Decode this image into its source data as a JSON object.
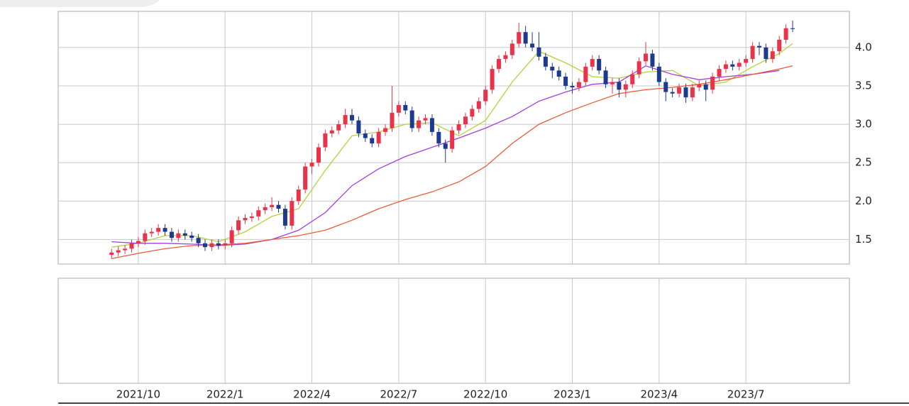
{
  "chart_data": {
    "type": "candlestick",
    "x": [
      8,
      9,
      10,
      11,
      12,
      13,
      14,
      15,
      16,
      17,
      18,
      19,
      20,
      21,
      22,
      23,
      24,
      25,
      26,
      27,
      28,
      29,
      30,
      31,
      32,
      33,
      34,
      35,
      36,
      37,
      38,
      39,
      40,
      41,
      42,
      43,
      44,
      45,
      46,
      47,
      48,
      49,
      50,
      51,
      52,
      53,
      54,
      55,
      56,
      57,
      58,
      59,
      60,
      61,
      62,
      63,
      64,
      65,
      66,
      67,
      68,
      69,
      70,
      71,
      72,
      73,
      74,
      75,
      76,
      77,
      78,
      79,
      80,
      81,
      82,
      83,
      84,
      85,
      86,
      87,
      88,
      89,
      90,
      91,
      92,
      93,
      94,
      95,
      96,
      97,
      98,
      99,
      100,
      101,
      102,
      103,
      104,
      105,
      106,
      107,
      108,
      109,
      110
    ],
    "open": [
      1.3,
      1.33,
      1.36,
      1.38,
      1.45,
      1.48,
      1.58,
      1.6,
      1.65,
      1.6,
      1.52,
      1.58,
      1.55,
      1.52,
      1.45,
      1.4,
      1.45,
      1.42,
      1.45,
      1.62,
      1.75,
      1.78,
      1.8,
      1.88,
      1.92,
      1.95,
      1.9,
      1.68,
      2.0,
      2.15,
      2.45,
      2.5,
      2.7,
      2.88,
      2.92,
      3.0,
      3.12,
      3.05,
      2.88,
      2.82,
      2.75,
      2.9,
      2.95,
      3.15,
      3.25,
      3.18,
      2.95,
      3.05,
      3.08,
      2.9,
      2.75,
      2.68,
      2.92,
      3.0,
      3.1,
      3.2,
      3.3,
      3.45,
      3.72,
      3.85,
      3.9,
      4.05,
      4.2,
      4.05,
      4.0,
      3.88,
      3.75,
      3.7,
      3.62,
      3.5,
      3.48,
      3.55,
      3.75,
      3.85,
      3.7,
      3.52,
      3.55,
      3.45,
      3.52,
      3.65,
      3.82,
      3.92,
      3.75,
      3.55,
      3.42,
      3.4,
      3.48,
      3.35,
      3.48,
      3.52,
      3.45,
      3.62,
      3.72,
      3.78,
      3.75,
      3.8,
      3.85,
      4.02,
      4.0,
      3.85,
      3.95,
      4.1,
      4.25
    ],
    "high": [
      1.38,
      1.41,
      1.43,
      1.5,
      1.53,
      1.63,
      1.65,
      1.7,
      1.7,
      1.65,
      1.63,
      1.63,
      1.6,
      1.57,
      1.5,
      1.5,
      1.5,
      1.5,
      1.67,
      1.8,
      1.83,
      1.85,
      1.93,
      1.97,
      2.05,
      2.0,
      1.95,
      2.05,
      2.2,
      2.5,
      2.55,
      2.75,
      2.93,
      2.97,
      3.05,
      3.2,
      3.2,
      3.1,
      2.93,
      2.87,
      2.95,
      3.0,
      3.5,
      3.3,
      3.3,
      3.23,
      3.1,
      3.13,
      3.13,
      2.95,
      2.8,
      2.97,
      3.05,
      3.15,
      3.25,
      3.35,
      3.5,
      3.77,
      3.9,
      3.95,
      4.1,
      4.32,
      4.28,
      4.2,
      4.2,
      3.93,
      3.8,
      3.75,
      3.67,
      3.55,
      3.6,
      3.8,
      3.9,
      3.9,
      3.75,
      3.6,
      3.6,
      3.57,
      3.7,
      3.87,
      4.07,
      3.97,
      3.8,
      3.6,
      3.47,
      3.53,
      3.53,
      3.53,
      3.57,
      3.57,
      3.67,
      3.77,
      3.83,
      3.83,
      3.85,
      3.9,
      4.07,
      4.07,
      4.05,
      4.0,
      4.15,
      4.3,
      4.35
    ],
    "low": [
      1.25,
      1.28,
      1.31,
      1.33,
      1.4,
      1.43,
      1.53,
      1.55,
      1.55,
      1.47,
      1.47,
      1.5,
      1.47,
      1.4,
      1.35,
      1.35,
      1.37,
      1.37,
      1.4,
      1.57,
      1.7,
      1.73,
      1.75,
      1.83,
      1.87,
      1.85,
      1.63,
      1.63,
      1.95,
      2.1,
      2.35,
      2.45,
      2.65,
      2.83,
      2.87,
      2.95,
      3.0,
      2.83,
      2.77,
      2.7,
      2.7,
      2.85,
      2.9,
      3.1,
      3.13,
      2.9,
      2.9,
      3.0,
      2.85,
      2.7,
      2.5,
      2.63,
      2.87,
      2.95,
      3.05,
      3.15,
      3.25,
      3.4,
      3.67,
      3.8,
      3.85,
      4.0,
      4.0,
      3.95,
      3.83,
      3.7,
      3.6,
      3.57,
      3.45,
      3.4,
      3.43,
      3.5,
      3.7,
      3.65,
      3.47,
      3.4,
      3.35,
      3.35,
      3.47,
      3.6,
      3.77,
      3.7,
      3.5,
      3.3,
      3.35,
      3.35,
      3.28,
      3.3,
      3.43,
      3.3,
      3.4,
      3.57,
      3.67,
      3.7,
      3.7,
      3.75,
      3.8,
      3.9,
      3.8,
      3.8,
      3.9,
      4.05,
      4.2
    ],
    "close": [
      1.33,
      1.36,
      1.38,
      1.45,
      1.48,
      1.58,
      1.6,
      1.65,
      1.6,
      1.52,
      1.58,
      1.55,
      1.52,
      1.45,
      1.4,
      1.45,
      1.42,
      1.45,
      1.62,
      1.75,
      1.78,
      1.8,
      1.88,
      1.92,
      1.95,
      1.9,
      1.68,
      2.0,
      2.15,
      2.45,
      2.5,
      2.7,
      2.88,
      2.92,
      3.0,
      3.12,
      3.05,
      2.88,
      2.82,
      2.75,
      2.9,
      2.95,
      3.15,
      3.25,
      3.18,
      2.95,
      3.05,
      3.08,
      2.9,
      2.75,
      2.68,
      2.92,
      3.0,
      3.1,
      3.2,
      3.3,
      3.45,
      3.72,
      3.85,
      3.9,
      4.05,
      4.2,
      4.05,
      4.0,
      3.88,
      3.75,
      3.7,
      3.62,
      3.5,
      3.48,
      3.55,
      3.75,
      3.85,
      3.7,
      3.52,
      3.55,
      3.45,
      3.52,
      3.65,
      3.82,
      3.92,
      3.75,
      3.55,
      3.42,
      3.4,
      3.48,
      3.35,
      3.48,
      3.52,
      3.45,
      3.62,
      3.72,
      3.78,
      3.75,
      3.8,
      3.85,
      4.02,
      4.0,
      3.85,
      3.95,
      4.1,
      4.25,
      4.24
    ],
    "up_color": "#e8334a",
    "down_color": "#1e3a8f",
    "lines": [
      {
        "color": "#b5d13a",
        "x": [
          8,
          12,
          16,
          20,
          24,
          28,
          32,
          36,
          40,
          44,
          48,
          52,
          56,
          60,
          64,
          68,
          72,
          76,
          80,
          84,
          88,
          92,
          96,
          100,
          104,
          108,
          110
        ],
        "values": [
          1.4,
          1.45,
          1.55,
          1.55,
          1.47,
          1.6,
          1.8,
          1.9,
          2.4,
          2.85,
          2.9,
          3.0,
          3.02,
          2.85,
          3.05,
          3.55,
          3.95,
          3.8,
          3.62,
          3.6,
          3.68,
          3.7,
          3.5,
          3.55,
          3.75,
          3.92,
          4.05
        ]
      },
      {
        "color": "#a23fe0",
        "x": [
          8,
          12,
          16,
          20,
          24,
          28,
          32,
          36,
          40,
          44,
          48,
          52,
          56,
          60,
          64,
          68,
          72,
          76,
          80,
          84,
          88,
          92,
          96,
          100,
          104,
          108
        ],
        "values": [
          1.47,
          1.45,
          1.45,
          1.44,
          1.42,
          1.44,
          1.5,
          1.62,
          1.85,
          2.2,
          2.42,
          2.58,
          2.7,
          2.82,
          2.95,
          3.1,
          3.3,
          3.42,
          3.52,
          3.55,
          3.76,
          3.65,
          3.58,
          3.62,
          3.65,
          3.7
        ]
      },
      {
        "color": "#ec5a3a",
        "x": [
          8,
          12,
          16,
          20,
          24,
          28,
          32,
          36,
          40,
          44,
          48,
          52,
          56,
          60,
          64,
          68,
          72,
          76,
          80,
          84,
          88,
          92,
          96,
          100,
          104,
          108,
          110
        ],
        "values": [
          1.25,
          1.32,
          1.38,
          1.42,
          1.43,
          1.45,
          1.5,
          1.55,
          1.62,
          1.75,
          1.9,
          2.02,
          2.12,
          2.25,
          2.45,
          2.75,
          3.0,
          3.15,
          3.28,
          3.4,
          3.45,
          3.48,
          3.52,
          3.58,
          3.65,
          3.72,
          3.76
        ]
      }
    ],
    "xlim": [
      0,
      118.5
    ],
    "ylim": [
      1.18,
      4.47
    ],
    "xticks": [
      {
        "value": 12,
        "label": "2021/10"
      },
      {
        "value": 25,
        "label": "2022/1"
      },
      {
        "value": 38,
        "label": "2022/4"
      },
      {
        "value": 51,
        "label": "2022/7"
      },
      {
        "value": 64,
        "label": "2022/10"
      },
      {
        "value": 77,
        "label": "2023/1"
      },
      {
        "value": 90,
        "label": "2023/4"
      },
      {
        "value": 103,
        "label": "2023/7"
      }
    ],
    "yticks": [
      {
        "value": 4,
        "label": "4.0"
      },
      3.5,
      {
        "value": 3,
        "label": "3.0"
      },
      2.5,
      {
        "value": 2,
        "label": "2.0"
      },
      1.5
    ],
    "grid": true
  }
}
